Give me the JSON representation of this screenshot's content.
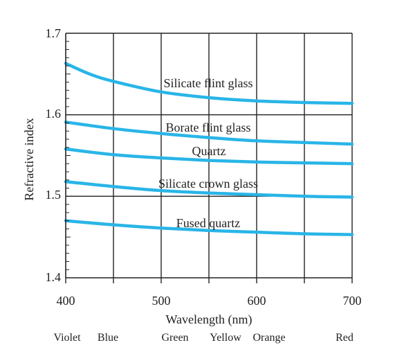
{
  "chart_data": {
    "type": "line",
    "title": "",
    "xlabel": "Wavelength (nm)",
    "ylabel": "Refractive index",
    "xlim": [
      400,
      700
    ],
    "ylim": [
      1.4,
      1.7
    ],
    "x_ticks": [
      "400",
      "500",
      "600",
      "700"
    ],
    "y_ticks": [
      "1.4",
      "1.5",
      "1.6",
      "1.7"
    ],
    "grid": true,
    "line_color": "#29b5e8",
    "color_labels": [
      "Violet",
      "Blue",
      "Green",
      "Yellow",
      "Orange",
      "Red"
    ],
    "series": [
      {
        "name": "Silicate flint glass",
        "x": [
          400,
          425,
          450,
          500,
          550,
          600,
          650,
          700
        ],
        "y": [
          1.663,
          1.65,
          1.641,
          1.628,
          1.621,
          1.617,
          1.615,
          1.614
        ]
      },
      {
        "name": "Borate flint glass",
        "x": [
          400,
          450,
          500,
          550,
          600,
          650,
          700
        ],
        "y": [
          1.591,
          1.583,
          1.577,
          1.572,
          1.568,
          1.566,
          1.564
        ]
      },
      {
        "name": "Quartz",
        "x": [
          400,
          450,
          500,
          550,
          600,
          650,
          700
        ],
        "y": [
          1.558,
          1.551,
          1.547,
          1.544,
          1.542,
          1.541,
          1.54
        ]
      },
      {
        "name": "Silicate crown glass",
        "x": [
          400,
          450,
          500,
          550,
          600,
          650,
          700
        ],
        "y": [
          1.518,
          1.512,
          1.507,
          1.504,
          1.502,
          1.5,
          1.499
        ]
      },
      {
        "name": "Fused quartz",
        "x": [
          400,
          450,
          500,
          550,
          600,
          650,
          700
        ],
        "y": [
          1.47,
          1.465,
          1.461,
          1.458,
          1.456,
          1.454,
          1.453
        ]
      }
    ]
  }
}
